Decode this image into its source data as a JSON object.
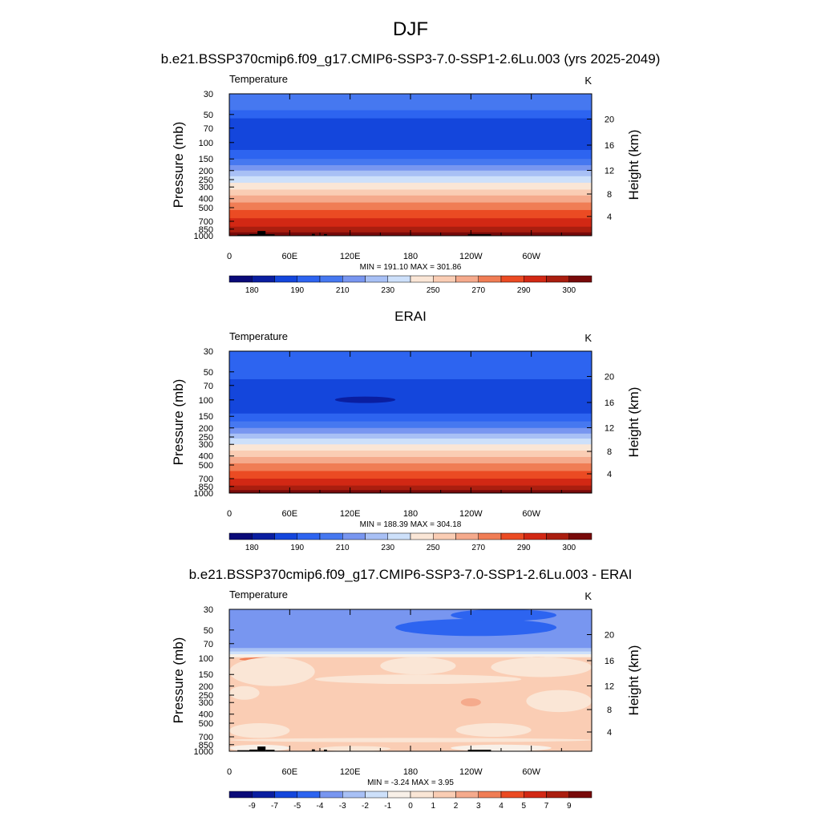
{
  "figure": {
    "title": "DJF",
    "panel_titles": [
      "b.e21.BSSP370cmip6.f09_g17.CMIP6-SSP3-7.0-SSP1-2.6Lu.003 (yrs 2025-2049)",
      "ERAI",
      "b.e21.BSSP370cmip6.f09_g17.CMIP6-SSP3-7.0-SSP1-2.6Lu.003 - ERAI"
    ]
  },
  "chart_data": [
    {
      "type": "heatmap",
      "title": "b.e21.BSSP370cmip6.f09_g17.CMIP6-SSP3-7.0-SSP1-2.6Lu.003 (yrs 2025-2049)",
      "left_label": "Temperature",
      "units": "K",
      "ylabel": "Pressure (mb)",
      "ylabel_right": "Height (km)",
      "x_ticks": [
        "0",
        "60E",
        "120E",
        "180",
        "120W",
        "60W"
      ],
      "y_ticks": [
        "30",
        "50",
        "70",
        "100",
        "150",
        "200",
        "250",
        "300",
        "400",
        "500",
        "700",
        "850",
        "1000"
      ],
      "y_ticks_right": [
        "20",
        "16",
        "12",
        "8",
        "4"
      ],
      "min_max": "MIN = 191.10  MAX = 301.86",
      "colorbar_labels": [
        "180",
        "190",
        "210",
        "230",
        "250",
        "270",
        "290",
        "300"
      ],
      "bands": [
        {
          "p_top": 30,
          "p_bottom": 45,
          "level": 4
        },
        {
          "p_top": 45,
          "p_bottom": 55,
          "level": 3
        },
        {
          "p_top": 55,
          "p_bottom": 120,
          "level": 2
        },
        {
          "p_top": 120,
          "p_bottom": 150,
          "level": 3
        },
        {
          "p_top": 150,
          "p_bottom": 175,
          "level": 4
        },
        {
          "p_top": 175,
          "p_bottom": 200,
          "level": 5
        },
        {
          "p_top": 200,
          "p_bottom": 230,
          "level": 6
        },
        {
          "p_top": 230,
          "p_bottom": 270,
          "level": 7
        },
        {
          "p_top": 270,
          "p_bottom": 320,
          "level": 8
        },
        {
          "p_top": 320,
          "p_bottom": 370,
          "level": 9
        },
        {
          "p_top": 370,
          "p_bottom": 440,
          "level": 10
        },
        {
          "p_top": 440,
          "p_bottom": 530,
          "level": 11
        },
        {
          "p_top": 530,
          "p_bottom": 650,
          "level": 12
        },
        {
          "p_top": 650,
          "p_bottom": 800,
          "level": 13
        },
        {
          "p_top": 800,
          "p_bottom": 920,
          "level": 14
        },
        {
          "p_top": 920,
          "p_bottom": 1000,
          "level": 15
        }
      ],
      "blobs": [],
      "terrain": [
        {
          "lon_start": 8,
          "lon_end": 20,
          "p_top": 975
        },
        {
          "lon_start": 20,
          "lon_end": 28,
          "p_top": 960
        },
        {
          "lon_start": 28,
          "lon_end": 36,
          "p_top": 890
        },
        {
          "lon_start": 36,
          "lon_end": 45,
          "p_top": 965
        },
        {
          "lon_start": 82,
          "lon_end": 85,
          "p_top": 955
        },
        {
          "lon_start": 94,
          "lon_end": 97,
          "p_top": 960
        },
        {
          "lon_start": 237,
          "lon_end": 260,
          "p_top": 965
        }
      ]
    },
    {
      "type": "heatmap",
      "title": "ERAI",
      "left_label": "Temperature",
      "units": "K",
      "ylabel": "Pressure (mb)",
      "ylabel_right": "Height (km)",
      "x_ticks": [
        "0",
        "60E",
        "120E",
        "180",
        "120W",
        "60W"
      ],
      "y_ticks": [
        "30",
        "50",
        "70",
        "100",
        "150",
        "200",
        "250",
        "300",
        "400",
        "500",
        "700",
        "850",
        "1000"
      ],
      "y_ticks_right": [
        "20",
        "16",
        "12",
        "8",
        "4"
      ],
      "min_max": "MIN = 188.39  MAX = 304.18",
      "colorbar_labels": [
        "180",
        "190",
        "210",
        "230",
        "250",
        "270",
        "290",
        "300"
      ],
      "bands": [
        {
          "p_top": 30,
          "p_bottom": 60,
          "level": 3
        },
        {
          "p_top": 60,
          "p_bottom": 140,
          "level": 2
        },
        {
          "p_top": 140,
          "p_bottom": 170,
          "level": 3
        },
        {
          "p_top": 170,
          "p_bottom": 200,
          "level": 4
        },
        {
          "p_top": 200,
          "p_bottom": 230,
          "level": 5
        },
        {
          "p_top": 230,
          "p_bottom": 260,
          "level": 6
        },
        {
          "p_top": 260,
          "p_bottom": 300,
          "level": 7
        },
        {
          "p_top": 300,
          "p_bottom": 350,
          "level": 8
        },
        {
          "p_top": 350,
          "p_bottom": 410,
          "level": 9
        },
        {
          "p_top": 410,
          "p_bottom": 480,
          "level": 10
        },
        {
          "p_top": 480,
          "p_bottom": 580,
          "level": 11
        },
        {
          "p_top": 580,
          "p_bottom": 700,
          "level": 12
        },
        {
          "p_top": 700,
          "p_bottom": 830,
          "level": 13
        },
        {
          "p_top": 830,
          "p_bottom": 930,
          "level": 14
        },
        {
          "p_top": 930,
          "p_bottom": 1000,
          "level": 15
        }
      ],
      "blobs": [
        {
          "lon_start": 105,
          "lon_end": 165,
          "p_top": 92,
          "p_bottom": 108,
          "level": 1
        }
      ],
      "terrain": []
    },
    {
      "type": "heatmap",
      "title": "b.e21.BSSP370cmip6.f09_g17.CMIP6-SSP3-7.0-SSP1-2.6Lu.003 - ERAI",
      "left_label": "Temperature",
      "units": "K",
      "ylabel": "Pressure (mb)",
      "ylabel_right": "Height (km)",
      "x_ticks": [
        "0",
        "60E",
        "120E",
        "180",
        "120W",
        "60W"
      ],
      "y_ticks": [
        "30",
        "50",
        "70",
        "100",
        "150",
        "200",
        "250",
        "300",
        "400",
        "500",
        "700",
        "850",
        "1000"
      ],
      "y_ticks_right": [
        "20",
        "16",
        "12",
        "8",
        "4"
      ],
      "min_max": "MIN =  -3.24  MAX =   3.95",
      "colorbar_labels": [
        "-9",
        "-7",
        "-5",
        "-4",
        "-3",
        "-2",
        "-1",
        "0",
        "1",
        "2",
        "3",
        "4",
        "5",
        "7",
        "9"
      ],
      "bands": [
        {
          "p_top": 30,
          "p_bottom": 78,
          "level": 4
        },
        {
          "p_top": 78,
          "p_bottom": 85,
          "level": 5
        },
        {
          "p_top": 85,
          "p_bottom": 91,
          "level": 6
        },
        {
          "p_top": 91,
          "p_bottom": 98,
          "level": 7
        },
        {
          "p_top": 98,
          "p_bottom": 1000,
          "level": 9
        }
      ],
      "blobs": [
        {
          "lon_start": 165,
          "lon_end": 325,
          "p_top": 38,
          "p_bottom": 58,
          "level": 3
        },
        {
          "lon_start": 220,
          "lon_end": 325,
          "p_top": 30,
          "p_bottom": 40,
          "level": 3
        },
        {
          "lon_start": 10,
          "lon_end": 60,
          "p_top": 98,
          "p_bottom": 108,
          "level": 11
        },
        {
          "lon_start": 295,
          "lon_end": 320,
          "p_top": 98,
          "p_bottom": 106,
          "level": 11
        },
        {
          "lon_start": 0,
          "lon_end": 85,
          "p_top": 98,
          "p_bottom": 200,
          "level": 8
        },
        {
          "lon_start": 150,
          "lon_end": 225,
          "p_top": 98,
          "p_bottom": 150,
          "level": 8
        },
        {
          "lon_start": 260,
          "lon_end": 360,
          "p_top": 98,
          "p_bottom": 160,
          "level": 8
        },
        {
          "lon_start": 85,
          "lon_end": 290,
          "p_top": 150,
          "p_bottom": 190,
          "level": 8
        },
        {
          "lon_start": 0,
          "lon_end": 30,
          "p_top": 200,
          "p_bottom": 280,
          "level": 8
        },
        {
          "lon_start": 295,
          "lon_end": 360,
          "p_top": 220,
          "p_bottom": 380,
          "level": 8
        },
        {
          "lon_start": 0,
          "lon_end": 60,
          "p_top": 500,
          "p_bottom": 720,
          "level": 8
        },
        {
          "lon_start": 225,
          "lon_end": 300,
          "p_top": 500,
          "p_bottom": 700,
          "level": 8
        },
        {
          "lon_start": 230,
          "lon_end": 250,
          "p_top": 270,
          "p_bottom": 330,
          "level": 10
        },
        {
          "lon_start": 0,
          "lon_end": 360,
          "p_top": 720,
          "p_bottom": 800,
          "level": 8
        },
        {
          "lon_start": 0,
          "lon_end": 60,
          "p_top": 850,
          "p_bottom": 1000,
          "level": 7
        },
        {
          "lon_start": 90,
          "lon_end": 160,
          "p_top": 880,
          "p_bottom": 1000,
          "level": 8
        },
        {
          "lon_start": 220,
          "lon_end": 320,
          "p_top": 850,
          "p_bottom": 1000,
          "level": 7
        }
      ],
      "terrain": [
        {
          "lon_start": 8,
          "lon_end": 20,
          "p_top": 975
        },
        {
          "lon_start": 20,
          "lon_end": 28,
          "p_top": 960
        },
        {
          "lon_start": 28,
          "lon_end": 36,
          "p_top": 890
        },
        {
          "lon_start": 36,
          "lon_end": 45,
          "p_top": 965
        },
        {
          "lon_start": 82,
          "lon_end": 85,
          "p_top": 955
        },
        {
          "lon_start": 94,
          "lon_end": 97,
          "p_top": 960
        },
        {
          "lon_start": 237,
          "lon_end": 260,
          "p_top": 965
        }
      ]
    }
  ],
  "palettes": {
    "temperature": [
      "#0a0a78",
      "#0a1ea0",
      "#1446dc",
      "#2d64f0",
      "#4678f0",
      "#7896f0",
      "#a8c0f5",
      "#cde0fa",
      "#fae6d6",
      "#facdb4",
      "#f5aa8c",
      "#f07d55",
      "#eb4b23",
      "#d22814",
      "#aa1e0f",
      "#780a0a"
    ],
    "difference": [
      "#0a0a78",
      "#0a1ea0",
      "#1446dc",
      "#2d64f0",
      "#7896f0",
      "#a8c0f5",
      "#cde0fa",
      "#f8f0e8",
      "#fae6d6",
      "#facdb4",
      "#f5aa8c",
      "#f07d55",
      "#eb4b23",
      "#d22814",
      "#aa1e0f",
      "#780a0a"
    ]
  }
}
